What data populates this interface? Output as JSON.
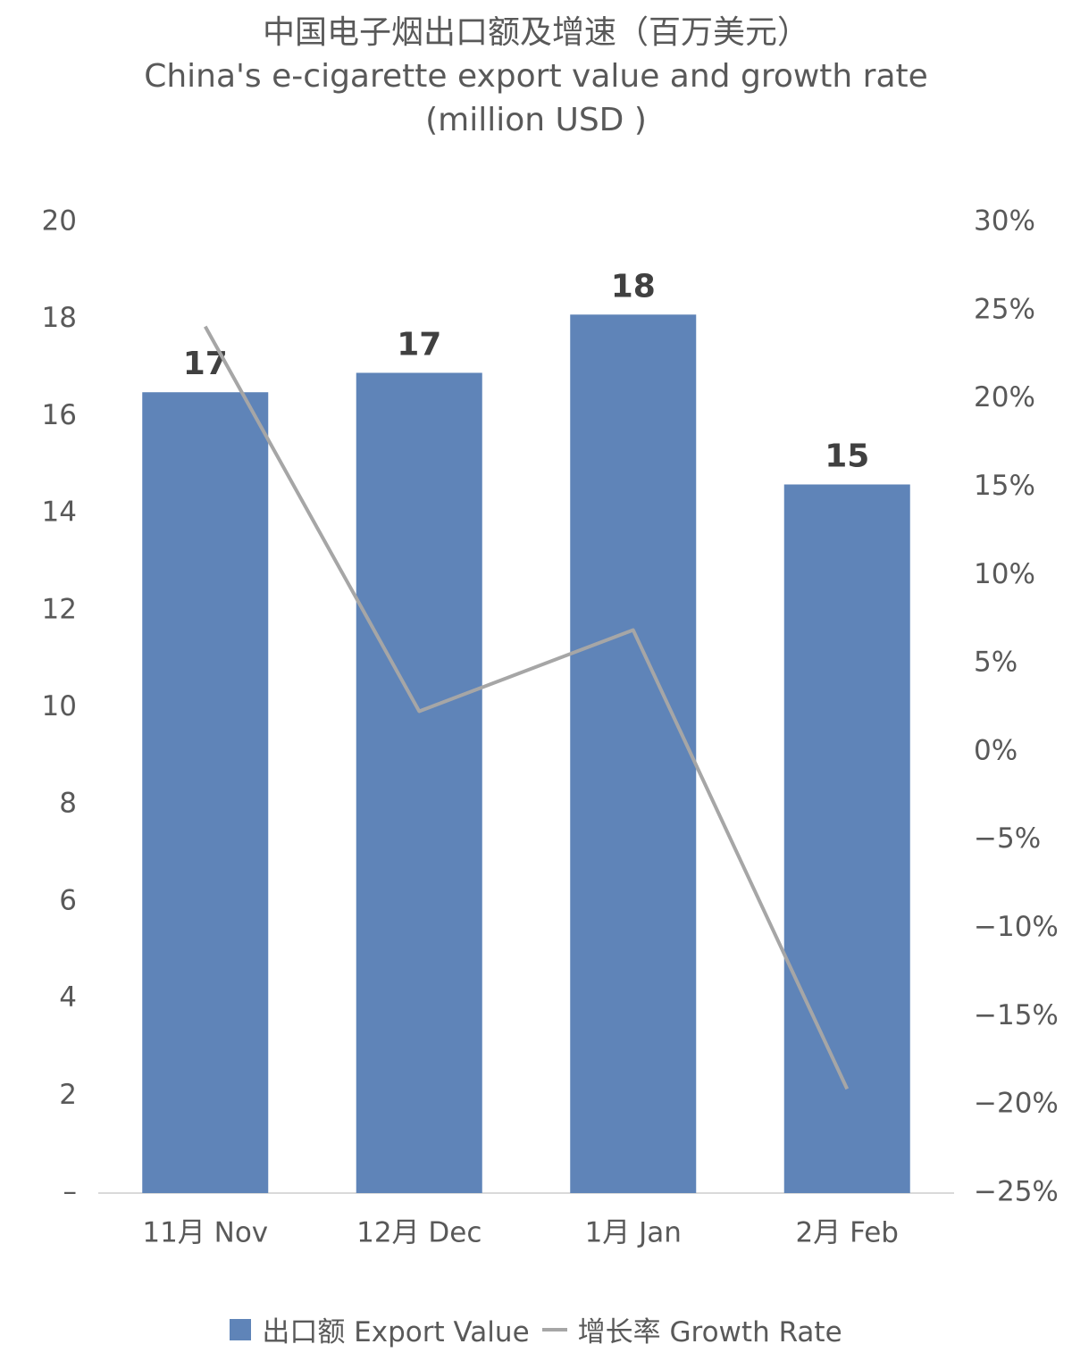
{
  "chart_data": {
    "type": "bar",
    "title": "中国电子烟出口额及增速（百万美元）",
    "subtitle": "China's e-cigarette export value and growth rate (million USD )",
    "categories": [
      "11月 Nov",
      "12月 Dec",
      "1月 Jan",
      "2月 Feb"
    ],
    "series": [
      {
        "name": "出口额 Export Value",
        "type": "bar",
        "color": "#5f84b8",
        "values": [
          16.5,
          16.9,
          18.1,
          14.6
        ],
        "value_labels": [
          "17",
          "17",
          "18",
          "15"
        ]
      },
      {
        "name": "增长率 Growth Rate",
        "type": "line",
        "color": "#a6a6a6",
        "axis": "y2",
        "values": [
          24.1,
          2.3,
          6.9,
          -19.1
        ]
      }
    ],
    "ylim": [
      0,
      20
    ],
    "yticks": [
      {
        "value": 0,
        "label": "–"
      },
      2,
      4,
      6,
      8,
      10,
      12,
      14,
      16,
      18,
      20
    ],
    "y2lim": [
      -25,
      30
    ],
    "y2ticks": [
      {
        "value": -25,
        "label": "−25%"
      },
      {
        "value": -20,
        "label": "−20%"
      },
      {
        "value": -15,
        "label": "−15%"
      },
      {
        "value": -10,
        "label": "−10%"
      },
      {
        "value": -5,
        "label": "−5%"
      },
      {
        "value": 0,
        "label": "0%"
      },
      {
        "value": 5,
        "label": "5%"
      },
      {
        "value": 10,
        "label": "10%"
      },
      {
        "value": 15,
        "label": "15%"
      },
      {
        "value": 20,
        "label": "20%"
      },
      {
        "value": 25,
        "label": "25%"
      },
      {
        "value": 30,
        "label": "30%"
      }
    ],
    "grid": false,
    "legend": "bottom"
  }
}
